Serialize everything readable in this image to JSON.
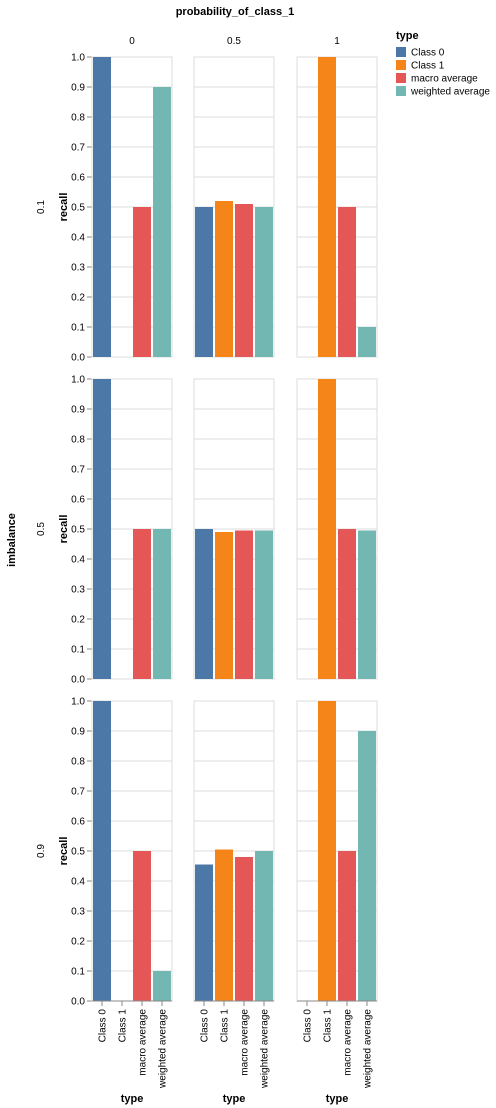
{
  "chart_data": {
    "type": "bar",
    "title": "probability_of_class_1",
    "column_values": [
      "0",
      "0.5",
      "1"
    ],
    "row_field": "imbalance",
    "row_values": [
      "0.1",
      "0.5",
      "0.9"
    ],
    "xlabel": "type",
    "ylabel": "recall",
    "categories": [
      "Class 0",
      "Class 1",
      "macro average",
      "weighted average"
    ],
    "ylim": [
      0,
      1
    ],
    "yticks": [
      "0.0",
      "0.1",
      "0.2",
      "0.3",
      "0.4",
      "0.5",
      "0.6",
      "0.7",
      "0.8",
      "0.9",
      "1.0"
    ],
    "grid": true,
    "legend": {
      "title": "type",
      "position": "top-right",
      "items": [
        "Class 0",
        "Class 1",
        "macro average",
        "weighted average"
      ]
    },
    "colors": {
      "Class 0": "#4c78a8",
      "Class 1": "#f58518",
      "macro average": "#e45756",
      "weighted average": "#72b7b2"
    },
    "panels": [
      {
        "imbalance": "0.1",
        "probability_of_class_1": "0",
        "values": [
          1.0,
          0.0,
          0.5,
          0.9
        ]
      },
      {
        "imbalance": "0.1",
        "probability_of_class_1": "0.5",
        "values": [
          0.5,
          0.52,
          0.51,
          0.5
        ]
      },
      {
        "imbalance": "0.1",
        "probability_of_class_1": "1",
        "values": [
          0.0,
          1.0,
          0.5,
          0.1
        ]
      },
      {
        "imbalance": "0.5",
        "probability_of_class_1": "0",
        "values": [
          1.0,
          0.0,
          0.5,
          0.5
        ]
      },
      {
        "imbalance": "0.5",
        "probability_of_class_1": "0.5",
        "values": [
          0.5,
          0.49,
          0.495,
          0.495
        ]
      },
      {
        "imbalance": "0.5",
        "probability_of_class_1": "1",
        "values": [
          0.0,
          1.0,
          0.5,
          0.495
        ]
      },
      {
        "imbalance": "0.9",
        "probability_of_class_1": "0",
        "values": [
          1.0,
          0.0,
          0.5,
          0.1
        ]
      },
      {
        "imbalance": "0.9",
        "probability_of_class_1": "0.5",
        "values": [
          0.455,
          0.505,
          0.48,
          0.5
        ]
      },
      {
        "imbalance": "0.9",
        "probability_of_class_1": "1",
        "values": [
          0.0,
          1.0,
          0.5,
          0.9
        ]
      }
    ]
  }
}
